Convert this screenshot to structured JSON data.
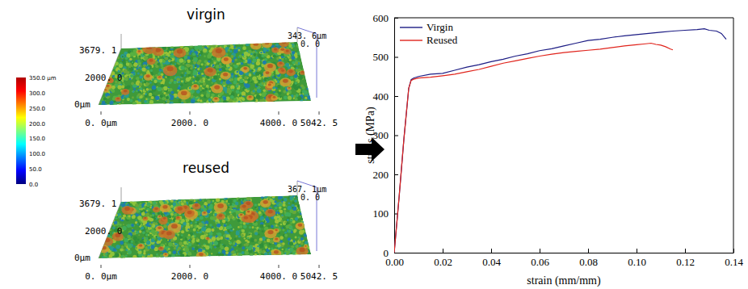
{
  "chart_data": {
    "type": "line",
    "xlabel": "strain (mm/mm)",
    "ylabel": "stress (MPa)",
    "xlim": [
      0,
      0.14
    ],
    "xticks": [
      {
        "value": 0,
        "label": "0.00"
      },
      {
        "value": 0.02,
        "label": "0.02"
      },
      {
        "value": 0.04,
        "label": "0.04"
      },
      {
        "value": 0.06,
        "label": "0.06"
      },
      {
        "value": 0.08,
        "label": "0.08"
      },
      {
        "value": 0.1,
        "label": "0.10"
      },
      {
        "value": 0.12,
        "label": "0.12"
      },
      {
        "value": 0.14,
        "label": "0.14"
      }
    ],
    "ylim": [
      0,
      600
    ],
    "yticks": [
      0,
      100,
      200,
      300,
      400,
      500,
      600
    ],
    "legend": "upper left",
    "series": [
      {
        "name": "Virgin",
        "color": "#1c1c84",
        "x": [
          0,
          0.002,
          0.004,
          0.006,
          0.007,
          0.008,
          0.01,
          0.015,
          0.02,
          0.025,
          0.03,
          0.035,
          0.04,
          0.045,
          0.05,
          0.055,
          0.06,
          0.065,
          0.07,
          0.075,
          0.08,
          0.085,
          0.09,
          0.095,
          0.1,
          0.105,
          0.11,
          0.115,
          0.12,
          0.125,
          0.128,
          0.13,
          0.133,
          0.135,
          0.137
        ],
        "values": [
          0,
          140,
          290,
          420,
          442,
          446,
          450,
          456,
          458,
          466,
          474,
          480,
          488,
          494,
          502,
          508,
          516,
          521,
          528,
          535,
          542,
          545,
          550,
          554,
          557,
          560,
          563,
          566,
          568,
          570,
          572,
          568,
          566,
          560,
          545
        ]
      },
      {
        "name": "Reused",
        "color": "#e0241c",
        "x": [
          0,
          0.002,
          0.004,
          0.006,
          0.007,
          0.008,
          0.01,
          0.015,
          0.02,
          0.025,
          0.03,
          0.035,
          0.04,
          0.045,
          0.05,
          0.055,
          0.06,
          0.065,
          0.07,
          0.075,
          0.08,
          0.085,
          0.09,
          0.095,
          0.1,
          0.103,
          0.106,
          0.108,
          0.11,
          0.112,
          0.114,
          0.115
        ],
        "values": [
          0,
          140,
          290,
          420,
          440,
          443,
          446,
          448,
          452,
          456,
          462,
          468,
          476,
          484,
          490,
          496,
          502,
          507,
          511,
          514,
          517,
          520,
          524,
          528,
          531,
          533,
          535,
          532,
          530,
          526,
          520,
          518
        ]
      }
    ]
  },
  "surfaces": [
    {
      "title": "virgin",
      "x_labels": [
        "0. 0μm",
        "2000. 0",
        "4000. 0",
        "5042. 5"
      ],
      "y_labels": [
        "3679. 1",
        "2000. 0",
        "0μm"
      ],
      "z_labels": [
        "343. 6μm",
        "0. 0"
      ]
    },
    {
      "title": "reused",
      "x_labels": [
        "0. 0μm",
        "2000. 0",
        "4000. 0",
        "5042. 5"
      ],
      "y_labels": [
        "3679. 1",
        "2000. 0",
        "0μm"
      ],
      "z_labels": [
        "367. 1μm",
        "0. 0"
      ]
    }
  ],
  "colorbar": {
    "range": [
      0,
      350
    ],
    "ticks": [
      {
        "value": 350,
        "label": "350.0 μm"
      },
      {
        "value": 300,
        "label": "300.0"
      },
      {
        "value": 250,
        "label": "250.0"
      },
      {
        "value": 200,
        "label": "200.0"
      },
      {
        "value": 150,
        "label": "150.0"
      },
      {
        "value": 100,
        "label": "100.0"
      },
      {
        "value": 50,
        "label": "50.0"
      },
      {
        "value": 0,
        "label": "0.0"
      }
    ]
  }
}
